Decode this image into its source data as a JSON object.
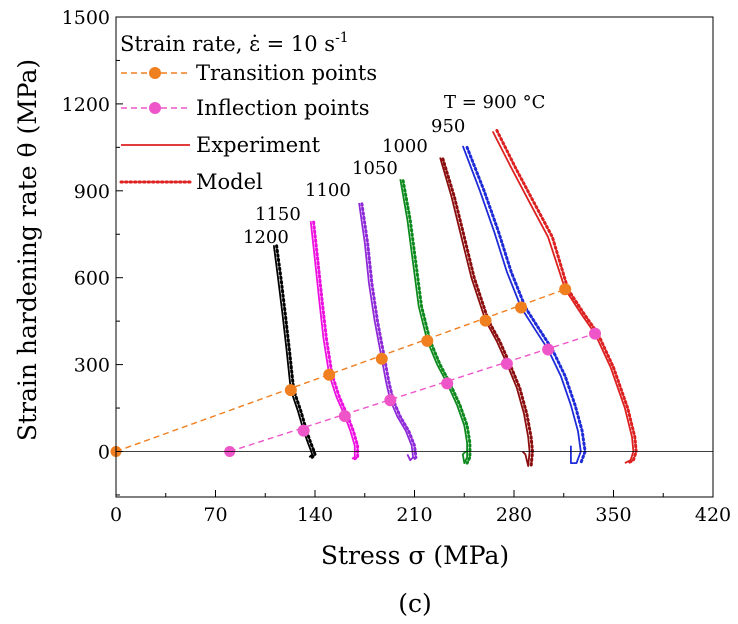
{
  "chart_data": {
    "type": "line",
    "title": "",
    "xlabel": "Stress σ (MPa)",
    "ylabel": "Strain hardening rate θ (MPa)",
    "xlim": [
      0,
      420
    ],
    "ylim": [
      -150,
      1500
    ],
    "xticks": [
      0,
      70,
      140,
      210,
      280,
      350,
      420
    ],
    "yticks": [
      0,
      300,
      600,
      900,
      1200,
      1500
    ],
    "grid": false,
    "legend_placement": "top-left",
    "legend_title": "Strain rate, ε̇ = 10 s",
    "legend_title_superscript": "-1",
    "legend": [
      {
        "label": "Transition points",
        "style": "dashed-marker",
        "color": "#f07f20"
      },
      {
        "label": "Inflection points",
        "style": "dashed-marker",
        "color": "#ee55c8"
      },
      {
        "label": "Experiment",
        "style": "solid",
        "color": "#dd2020"
      },
      {
        "label": "Model",
        "style": "dotted",
        "color": "#dd2020"
      }
    ],
    "transition_points": {
      "color": "#f07f20",
      "line_start": [
        0,
        0
      ],
      "points": [
        [
          123,
          212
        ],
        [
          150,
          265
        ],
        [
          187,
          320
        ],
        [
          219,
          382
        ],
        [
          260,
          452
        ],
        [
          285,
          497
        ],
        [
          316,
          560
        ]
      ]
    },
    "inflection_points": {
      "color": "#ee55c8",
      "line_start": [
        80,
        0
      ],
      "points": [
        [
          132,
          72
        ],
        [
          161,
          122
        ],
        [
          193,
          177
        ],
        [
          233,
          235
        ],
        [
          275,
          303
        ],
        [
          304,
          352
        ],
        [
          337,
          407
        ]
      ]
    },
    "curves": [
      {
        "label": "T = 900 °C",
        "color": "#dd2020",
        "experiment": [
          [
            265,
            1105
          ],
          [
            278,
            980
          ],
          [
            291,
            860
          ],
          [
            304,
            740
          ],
          [
            316,
            560
          ],
          [
            328,
            470
          ],
          [
            337,
            407
          ],
          [
            348,
            290
          ],
          [
            358,
            150
          ],
          [
            363,
            50
          ],
          [
            364,
            0
          ],
          [
            362,
            -30
          ],
          [
            358,
            -40
          ]
        ],
        "model": [
          [
            268,
            1108
          ],
          [
            281,
            980
          ],
          [
            294,
            860
          ],
          [
            307,
            740
          ],
          [
            318,
            560
          ],
          [
            330,
            470
          ],
          [
            339,
            407
          ],
          [
            350,
            290
          ],
          [
            360,
            150
          ],
          [
            365,
            50
          ],
          [
            366,
            0
          ],
          [
            364,
            -30
          ],
          [
            360,
            -40
          ]
        ]
      },
      {
        "label": "950",
        "color": "#1f2bd8",
        "experiment": [
          [
            244,
            1055
          ],
          [
            256,
            900
          ],
          [
            266,
            760
          ],
          [
            275,
            620
          ],
          [
            285,
            497
          ],
          [
            295,
            420
          ],
          [
            304,
            352
          ],
          [
            313,
            260
          ],
          [
            320,
            160
          ],
          [
            325,
            70
          ],
          [
            327,
            0
          ],
          [
            324,
            -40
          ],
          [
            320,
            -40
          ],
          [
            320,
            20
          ]
        ],
        "model": [
          [
            247,
            1050
          ],
          [
            259,
            900
          ],
          [
            269,
            760
          ],
          [
            278,
            620
          ],
          [
            288,
            497
          ],
          [
            298,
            420
          ],
          [
            307,
            352
          ],
          [
            316,
            260
          ],
          [
            323,
            160
          ],
          [
            328,
            70
          ],
          [
            330,
            0
          ],
          [
            327,
            -40
          ]
        ]
      },
      {
        "label": "1000",
        "color": "#8b0d0d",
        "experiment": [
          [
            228,
            1015
          ],
          [
            236,
            880
          ],
          [
            243,
            740
          ],
          [
            250,
            600
          ],
          [
            260,
            452
          ],
          [
            268,
            380
          ],
          [
            275,
            303
          ],
          [
            282,
            220
          ],
          [
            287,
            130
          ],
          [
            290,
            50
          ],
          [
            291,
            0
          ],
          [
            290,
            -50
          ],
          [
            288,
            -10
          ],
          [
            286,
            0
          ]
        ],
        "model": [
          [
            230,
            1010
          ],
          [
            238,
            880
          ],
          [
            245,
            740
          ],
          [
            252,
            600
          ],
          [
            262,
            452
          ],
          [
            270,
            380
          ],
          [
            277,
            303
          ],
          [
            284,
            220
          ],
          [
            289,
            130
          ],
          [
            292,
            50
          ],
          [
            293,
            0
          ],
          [
            292,
            -50
          ]
        ]
      },
      {
        "label": "1050",
        "color": "#0d8a1d",
        "experiment": [
          [
            200,
            940
          ],
          [
            205,
            800
          ],
          [
            209,
            650
          ],
          [
            213,
            500
          ],
          [
            219,
            382
          ],
          [
            226,
            300
          ],
          [
            233,
            235
          ],
          [
            240,
            160
          ],
          [
            245,
            90
          ],
          [
            247,
            30
          ],
          [
            247,
            -20
          ],
          [
            245,
            -40
          ],
          [
            244,
            -10
          ],
          [
            246,
            0
          ]
        ],
        "model": [
          [
            202,
            935
          ],
          [
            207,
            800
          ],
          [
            211,
            650
          ],
          [
            215,
            500
          ],
          [
            221,
            382
          ],
          [
            228,
            300
          ],
          [
            235,
            235
          ],
          [
            242,
            160
          ],
          [
            247,
            90
          ],
          [
            249,
            30
          ],
          [
            249,
            -20
          ],
          [
            247,
            -40
          ]
        ]
      },
      {
        "label": "1100",
        "color": "#8e2ad8",
        "experiment": [
          [
            171,
            858
          ],
          [
            175,
            720
          ],
          [
            178,
            580
          ],
          [
            182,
            450
          ],
          [
            187,
            320
          ],
          [
            190,
            240
          ],
          [
            193,
            177
          ],
          [
            198,
            120
          ],
          [
            204,
            70
          ],
          [
            208,
            20
          ],
          [
            209,
            -20
          ],
          [
            207,
            -30
          ],
          [
            205,
            -10
          ]
        ],
        "model": [
          [
            173,
            855
          ],
          [
            177,
            720
          ],
          [
            180,
            580
          ],
          [
            184,
            450
          ],
          [
            189,
            320
          ],
          [
            192,
            240
          ],
          [
            195,
            177
          ],
          [
            200,
            120
          ],
          [
            206,
            70
          ],
          [
            210,
            20
          ],
          [
            211,
            -20
          ],
          [
            209,
            -30
          ]
        ]
      },
      {
        "label": "1150",
        "color": "#ee10e0",
        "experiment": [
          [
            137,
            795
          ],
          [
            140,
            660
          ],
          [
            143,
            520
          ],
          [
            146,
            390
          ],
          [
            150,
            265
          ],
          [
            155,
            190
          ],
          [
            161,
            122
          ],
          [
            165,
            70
          ],
          [
            168,
            20
          ],
          [
            168,
            -20
          ],
          [
            166,
            -25
          ]
        ],
        "model": [
          [
            139,
            792
          ],
          [
            142,
            660
          ],
          [
            145,
            520
          ],
          [
            148,
            390
          ],
          [
            152,
            265
          ],
          [
            157,
            190
          ],
          [
            163,
            122
          ],
          [
            167,
            70
          ],
          [
            170,
            20
          ],
          [
            170,
            -20
          ],
          [
            168,
            -25
          ]
        ]
      },
      {
        "label": "1200",
        "color": "#000000",
        "experiment": [
          [
            111,
            712
          ],
          [
            114,
            600
          ],
          [
            117,
            480
          ],
          [
            120,
            350
          ],
          [
            123,
            212
          ],
          [
            128,
            140
          ],
          [
            132,
            72
          ],
          [
            135,
            30
          ],
          [
            137,
            5
          ],
          [
            138,
            -10
          ],
          [
            136,
            -20
          ]
        ],
        "model": [
          [
            113,
            710
          ],
          [
            116,
            600
          ],
          [
            119,
            480
          ],
          [
            122,
            350
          ],
          [
            125,
            212
          ],
          [
            130,
            140
          ],
          [
            134,
            72
          ],
          [
            137,
            30
          ],
          [
            139,
            5
          ],
          [
            140,
            -10
          ],
          [
            138,
            -20
          ]
        ]
      }
    ],
    "annotations": {
      "t_label": "T = 900 °C",
      "temps": [
        "950",
        "1000",
        "1050",
        "1100",
        "1150",
        "1200"
      ]
    },
    "panel_label": "(c)"
  }
}
